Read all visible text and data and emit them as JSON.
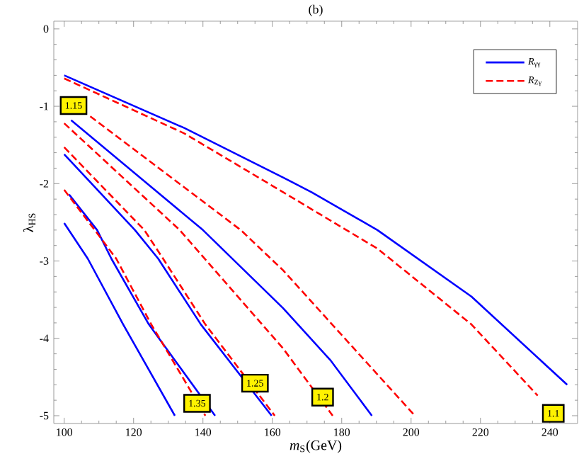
{
  "chart_data": {
    "type": "line",
    "title": "(b)",
    "xlabel": "*m*$_{S}$(GeV)",
    "ylabel": "λ$_{HS}$",
    "xlim": [
      97,
      248
    ],
    "ylim": [
      -5.1,
      0.1
    ],
    "xticks": [
      100,
      120,
      140,
      160,
      180,
      200,
      220,
      240
    ],
    "yticks": [
      0,
      -1,
      -2,
      -3,
      -4,
      -5
    ],
    "legend": "top right",
    "series": [
      {
        "name": "*R*$_{γγ}$",
        "color": "#0000ff",
        "line_style": "solid",
        "x": [
          100,
          134.6,
          163.1,
          171.3,
          190.3,
          217.4,
          245
        ],
        "values": [
          -0.6,
          -1.28,
          -1.92,
          -2.11,
          -2.6,
          -3.46,
          -4.6
        ]
      },
      {
        "name": "*R*$_{Zγ}$",
        "color": "#ff0000",
        "line_style": "dashed",
        "x": [
          100,
          134.6,
          163.1,
          190.3,
          217.4,
          236.5
        ],
        "values": [
          -0.64,
          -1.35,
          -2.11,
          -2.84,
          -3.82,
          -4.74
        ]
      },
      {
        "color": "#0000ff",
        "line_style": "solid",
        "x": [
          102,
          140,
          163.1,
          176.7,
          188.7
        ],
        "values": [
          -1.18,
          -2.6,
          -3.61,
          -4.28,
          -5
        ]
      },
      {
        "color": "#0000ff",
        "line_style": "solid",
        "x": [
          100,
          120.4,
          127.1,
          139.4,
          159.8
        ],
        "values": [
          -1.62,
          -2.6,
          -2.97,
          -3.82,
          -5
        ]
      },
      {
        "color": "#0000ff",
        "line_style": "solid",
        "x": [
          101.4,
          109.5,
          113.6,
          124.4,
          143.5
        ],
        "values": [
          -2.14,
          -2.6,
          -2.97,
          -3.82,
          -5
        ]
      },
      {
        "color": "#0000ff",
        "line_style": "solid",
        "x": [
          100,
          106.8,
          117,
          131.9
        ],
        "values": [
          -2.51,
          -2.97,
          -3.82,
          -5
        ]
      },
      {
        "color": "#ff0000",
        "line_style": "dashed",
        "x": [
          107.5,
          150.9,
          163.1,
          183.5,
          201.1
        ],
        "values": [
          -1.13,
          -2.6,
          -3.12,
          -4.13,
          -5
        ]
      },
      {
        "color": "#ff0000",
        "line_style": "dashed",
        "x": [
          100,
          133.3,
          163.1,
          177.4
        ],
        "values": [
          -1.22,
          -2.6,
          -4.13,
          -5
        ]
      },
      {
        "color": "#ff0000",
        "line_style": "dashed",
        "x": [
          100,
          123.1,
          128.5,
          140.7,
          160.7
        ],
        "values": [
          -1.53,
          -2.6,
          -2.97,
          -3.82,
          -5
        ]
      },
      {
        "color": "#ff0000",
        "line_style": "dashed",
        "x": [
          100,
          108.8,
          115,
          125.1,
          140.7
        ],
        "values": [
          -2.08,
          -2.6,
          -2.97,
          -3.82,
          -5
        ]
      }
    ],
    "annotations": [
      {
        "text": "1.15",
        "x": 102.7,
        "y": -0.99
      },
      {
        "text": "1.35",
        "x": 138.3,
        "y": -4.84
      },
      {
        "text": "1.25",
        "x": 155,
        "y": -4.58
      },
      {
        "text": "1.2",
        "x": 174.5,
        "y": -4.76
      },
      {
        "text": "1.1",
        "x": 241,
        "y": -4.97
      }
    ]
  }
}
